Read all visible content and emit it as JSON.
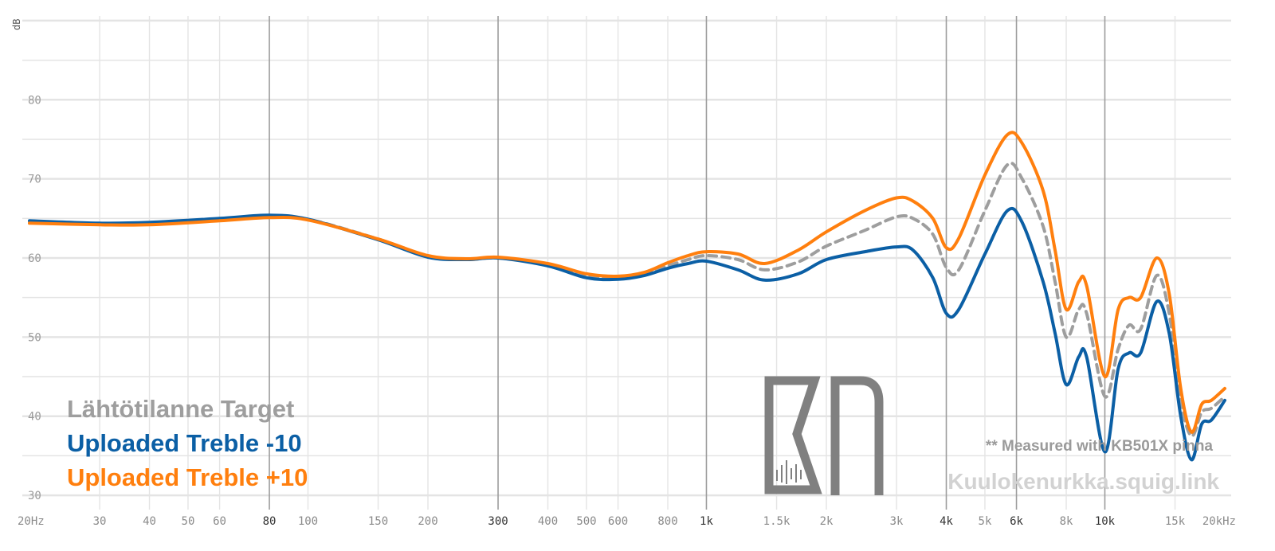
{
  "chart_data": {
    "type": "line",
    "ylabel": "dB",
    "xscale": "log",
    "xlim": [
      20,
      20000
    ],
    "ylim": [
      29,
      91
    ],
    "grid": true,
    "legend_position": "bottom-left",
    "x_ticks": [
      {
        "value": 20,
        "label": "20Hz",
        "major": false
      },
      {
        "value": 30,
        "label": "30",
        "major": false
      },
      {
        "value": 40,
        "label": "40",
        "major": false
      },
      {
        "value": 50,
        "label": "50",
        "major": false
      },
      {
        "value": 60,
        "label": "60",
        "major": false
      },
      {
        "value": 80,
        "label": "80",
        "major": true
      },
      {
        "value": 100,
        "label": "100",
        "major": false
      },
      {
        "value": 150,
        "label": "150",
        "major": false
      },
      {
        "value": 200,
        "label": "200",
        "major": false
      },
      {
        "value": 300,
        "label": "300",
        "major": true
      },
      {
        "value": 400,
        "label": "400",
        "major": false
      },
      {
        "value": 500,
        "label": "500",
        "major": false
      },
      {
        "value": 600,
        "label": "600",
        "major": false
      },
      {
        "value": 800,
        "label": "800",
        "major": false
      },
      {
        "value": 1000,
        "label": "1k",
        "major": true
      },
      {
        "value": 1500,
        "label": "1.5k",
        "major": false
      },
      {
        "value": 2000,
        "label": "2k",
        "major": false
      },
      {
        "value": 3000,
        "label": "3k",
        "major": false
      },
      {
        "value": 4000,
        "label": "4k",
        "major": true
      },
      {
        "value": 5000,
        "label": "5k",
        "major": false
      },
      {
        "value": 6000,
        "label": "6k",
        "major": true
      },
      {
        "value": 8000,
        "label": "8k",
        "major": false
      },
      {
        "value": 10000,
        "label": "10k",
        "major": true
      },
      {
        "value": 15000,
        "label": "15k",
        "major": false
      },
      {
        "value": 20000,
        "label": "20kHz",
        "major": false
      }
    ],
    "y_ticks": [
      {
        "value": 30,
        "label": "30"
      },
      {
        "value": 40,
        "label": "40"
      },
      {
        "value": 50,
        "label": "50"
      },
      {
        "value": 60,
        "label": "60"
      },
      {
        "value": 70,
        "label": "70"
      },
      {
        "value": 80,
        "label": "80"
      }
    ],
    "series": [
      {
        "name": "Lähtötilanne Target",
        "color": "#9e9e9e",
        "dashed": true,
        "points": [
          [
            20,
            64.6
          ],
          [
            30,
            64.3
          ],
          [
            40,
            64.4
          ],
          [
            60,
            64.9
          ],
          [
            80,
            65.2
          ],
          [
            100,
            64.9
          ],
          [
            150,
            62.4
          ],
          [
            200,
            60.2
          ],
          [
            250,
            59.8
          ],
          [
            300,
            60.0
          ],
          [
            400,
            59.2
          ],
          [
            500,
            57.8
          ],
          [
            600,
            57.5
          ],
          [
            700,
            58.0
          ],
          [
            800,
            59.0
          ],
          [
            900,
            59.8
          ],
          [
            1000,
            60.3
          ],
          [
            1200,
            59.8
          ],
          [
            1400,
            58.5
          ],
          [
            1700,
            59.5
          ],
          [
            2000,
            61.5
          ],
          [
            2500,
            63.5
          ],
          [
            3000,
            65.2
          ],
          [
            3300,
            65.0
          ],
          [
            3700,
            63.0
          ],
          [
            4000,
            58.8
          ],
          [
            4300,
            58.5
          ],
          [
            5000,
            66.0
          ],
          [
            5700,
            71.8
          ],
          [
            6200,
            70.0
          ],
          [
            7000,
            64.0
          ],
          [
            7500,
            57.0
          ],
          [
            8000,
            50.0
          ],
          [
            8600,
            53.5
          ],
          [
            9000,
            53.0
          ],
          [
            10000,
            42.5
          ],
          [
            10800,
            48.5
          ],
          [
            11500,
            51.5
          ],
          [
            12300,
            51.0
          ],
          [
            13500,
            57.8
          ],
          [
            14500,
            53.0
          ],
          [
            15500,
            42.0
          ],
          [
            16500,
            37.5
          ],
          [
            17500,
            40.5
          ],
          [
            18500,
            41.0
          ],
          [
            20000,
            42.5
          ]
        ]
      },
      {
        "name": "Uploaded Treble -10",
        "color": "#0b5fa5",
        "dashed": false,
        "points": [
          [
            20,
            64.7
          ],
          [
            30,
            64.4
          ],
          [
            40,
            64.5
          ],
          [
            60,
            65.0
          ],
          [
            80,
            65.4
          ],
          [
            100,
            64.9
          ],
          [
            150,
            62.3
          ],
          [
            200,
            60.1
          ],
          [
            250,
            59.8
          ],
          [
            300,
            60.0
          ],
          [
            400,
            59.0
          ],
          [
            500,
            57.5
          ],
          [
            600,
            57.3
          ],
          [
            700,
            57.8
          ],
          [
            800,
            58.7
          ],
          [
            900,
            59.3
          ],
          [
            1000,
            59.6
          ],
          [
            1200,
            58.5
          ],
          [
            1400,
            57.2
          ],
          [
            1700,
            58.0
          ],
          [
            2000,
            59.8
          ],
          [
            2500,
            60.8
          ],
          [
            3000,
            61.4
          ],
          [
            3300,
            61.0
          ],
          [
            3700,
            57.5
          ],
          [
            4000,
            53.0
          ],
          [
            4300,
            53.5
          ],
          [
            5000,
            60.5
          ],
          [
            5700,
            66.0
          ],
          [
            6200,
            64.5
          ],
          [
            7000,
            57.0
          ],
          [
            7500,
            50.5
          ],
          [
            8000,
            44.0
          ],
          [
            8600,
            47.5
          ],
          [
            9000,
            47.5
          ],
          [
            10000,
            35.5
          ],
          [
            10800,
            46.0
          ],
          [
            11500,
            48.0
          ],
          [
            12300,
            48.0
          ],
          [
            13500,
            54.5
          ],
          [
            14500,
            50.5
          ],
          [
            15500,
            40.0
          ],
          [
            16500,
            34.5
          ],
          [
            17500,
            39.0
          ],
          [
            18500,
            39.5
          ],
          [
            20000,
            42.0
          ]
        ]
      },
      {
        "name": "Uploaded Treble +10",
        "color": "#ff7f0e",
        "dashed": false,
        "points": [
          [
            20,
            64.4
          ],
          [
            30,
            64.2
          ],
          [
            40,
            64.2
          ],
          [
            60,
            64.7
          ],
          [
            80,
            65.1
          ],
          [
            100,
            64.8
          ],
          [
            150,
            62.4
          ],
          [
            200,
            60.3
          ],
          [
            250,
            59.9
          ],
          [
            300,
            60.1
          ],
          [
            400,
            59.3
          ],
          [
            500,
            58.0
          ],
          [
            600,
            57.7
          ],
          [
            700,
            58.2
          ],
          [
            800,
            59.4
          ],
          [
            900,
            60.3
          ],
          [
            1000,
            60.8
          ],
          [
            1200,
            60.5
          ],
          [
            1400,
            59.3
          ],
          [
            1700,
            61.0
          ],
          [
            2000,
            63.3
          ],
          [
            2500,
            66.0
          ],
          [
            3000,
            67.6
          ],
          [
            3300,
            67.2
          ],
          [
            3700,
            65.0
          ],
          [
            4000,
            61.3
          ],
          [
            4300,
            62.5
          ],
          [
            5000,
            70.5
          ],
          [
            5700,
            75.6
          ],
          [
            6200,
            74.5
          ],
          [
            7000,
            68.5
          ],
          [
            7500,
            61.0
          ],
          [
            8000,
            53.5
          ],
          [
            8600,
            57.0
          ],
          [
            9000,
            56.5
          ],
          [
            10000,
            45.0
          ],
          [
            10800,
            53.5
          ],
          [
            11500,
            55.0
          ],
          [
            12300,
            55.0
          ],
          [
            13500,
            60.0
          ],
          [
            14500,
            55.5
          ],
          [
            15500,
            43.5
          ],
          [
            16500,
            38.0
          ],
          [
            17500,
            41.5
          ],
          [
            18500,
            42.0
          ],
          [
            20000,
            43.5
          ]
        ]
      }
    ]
  },
  "note": "** Measured with KB501X pinna",
  "watermark": "Kuulokenurkka.squig.link",
  "colors": {
    "grid": "#e4e4e4",
    "grid_major": "#9c9c9c",
    "logo": "#808080"
  }
}
